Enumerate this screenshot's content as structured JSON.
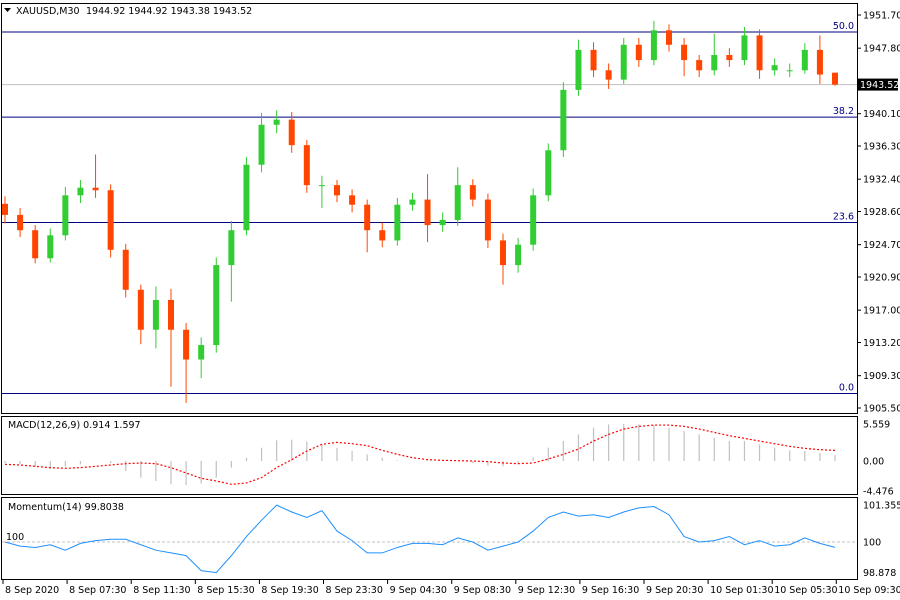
{
  "header": {
    "symbol": "XAUUSD,M30",
    "ohlc": "1944.92 1944.92 1943.38 1943.52",
    "menu_icon": "triangle-down-icon"
  },
  "colors": {
    "bull": "#32CD32",
    "bear": "#FF4500",
    "fib_line": "#000080",
    "price_line": "#C0C0C0",
    "macd_hist": "#C0C0C0",
    "macd_signal": "#FF0000",
    "momentum": "#1E90FF"
  },
  "chart_data": [
    {
      "type": "candlestick",
      "title": "XAUUSD,M30",
      "ylim": [
        1905.5,
        1951.7
      ],
      "y_ticks": [
        "1951.70",
        "1947.80",
        "1940.10",
        "1936.30",
        "1932.40",
        "1928.60",
        "1924.70",
        "1920.90",
        "1917.00",
        "1913.20",
        "1909.30",
        "1905.50"
      ],
      "current_price": "1943.52",
      "fib_levels": [
        {
          "label": "50.0",
          "price": 1949.7
        },
        {
          "label": "38.2",
          "price": 1939.7
        },
        {
          "label": "23.6",
          "price": 1927.3
        },
        {
          "label": "0.0",
          "price": 1907.2
        }
      ],
      "x_ticks": [
        "8 Sep 2020",
        "8 Sep 07:30",
        "8 Sep 11:30",
        "8 Sep 15:30",
        "8 Sep 19:30",
        "8 Sep 23:30",
        "9 Sep 04:30",
        "9 Sep 08:30",
        "9 Sep 12:30",
        "9 Sep 16:30",
        "9 Sep 20:30",
        "10 Sep 01:30",
        "10 Sep 05:30",
        "10 Sep 09:30"
      ],
      "ohlc": [
        [
          1929.5,
          1930.4,
          1927.2,
          1928.2
        ],
        [
          1928.2,
          1929.0,
          1925.6,
          1926.4
        ],
        [
          1926.4,
          1927.0,
          1922.5,
          1923.1
        ],
        [
          1923.1,
          1926.6,
          1922.6,
          1925.8
        ],
        [
          1925.8,
          1931.5,
          1925.2,
          1930.5
        ],
        [
          1930.5,
          1932.3,
          1929.6,
          1931.4
        ],
        [
          1931.4,
          1935.3,
          1930.2,
          1931.1
        ],
        [
          1931.1,
          1931.8,
          1923.2,
          1924.1
        ],
        [
          1924.1,
          1924.8,
          1918.5,
          1919.4
        ],
        [
          1919.4,
          1920.0,
          1913.0,
          1914.7
        ],
        [
          1914.7,
          1919.8,
          1912.5,
          1918.2
        ],
        [
          1918.2,
          1919.5,
          1908.0,
          1914.7
        ],
        [
          1914.7,
          1915.5,
          1906.1,
          1911.2
        ],
        [
          1911.2,
          1913.8,
          1909.0,
          1912.9
        ],
        [
          1912.9,
          1923.2,
          1912.0,
          1922.3
        ],
        [
          1922.3,
          1927.5,
          1918.0,
          1926.4
        ],
        [
          1926.4,
          1935.0,
          1925.8,
          1934.1
        ],
        [
          1934.1,
          1940.2,
          1933.2,
          1938.8
        ],
        [
          1938.8,
          1940.5,
          1937.8,
          1939.4
        ],
        [
          1939.4,
          1940.3,
          1935.5,
          1936.4
        ],
        [
          1936.4,
          1937.0,
          1930.8,
          1931.7
        ],
        [
          1931.7,
          1932.8,
          1929.0,
          1931.7
        ],
        [
          1931.7,
          1932.3,
          1929.7,
          1930.5
        ],
        [
          1930.5,
          1931.2,
          1928.5,
          1929.4
        ],
        [
          1929.4,
          1930.0,
          1923.8,
          1926.4
        ],
        [
          1926.4,
          1927.3,
          1924.4,
          1925.2
        ],
        [
          1925.2,
          1930.2,
          1924.6,
          1929.4
        ],
        [
          1929.4,
          1930.8,
          1928.7,
          1930.0
        ],
        [
          1930.0,
          1933.0,
          1925.0,
          1927.0
        ],
        [
          1927.0,
          1928.5,
          1926.2,
          1927.6
        ],
        [
          1927.6,
          1933.8,
          1926.9,
          1931.7
        ],
        [
          1931.7,
          1932.4,
          1929.2,
          1930.0
        ],
        [
          1930.0,
          1930.7,
          1924.3,
          1925.2
        ],
        [
          1925.2,
          1926.0,
          1920.0,
          1922.3
        ],
        [
          1922.3,
          1925.5,
          1921.4,
          1924.7
        ],
        [
          1924.7,
          1931.3,
          1924.0,
          1930.5
        ],
        [
          1930.5,
          1936.6,
          1929.8,
          1935.8
        ],
        [
          1935.8,
          1943.8,
          1935.0,
          1942.9
        ],
        [
          1942.9,
          1948.8,
          1942.2,
          1947.6
        ],
        [
          1947.6,
          1948.5,
          1944.4,
          1945.2
        ],
        [
          1945.2,
          1946.0,
          1943.0,
          1944.1
        ],
        [
          1944.1,
          1949.0,
          1943.6,
          1948.2
        ],
        [
          1948.2,
          1949.0,
          1945.6,
          1946.4
        ],
        [
          1946.4,
          1951.0,
          1945.8,
          1949.9
        ],
        [
          1949.9,
          1950.6,
          1947.4,
          1948.2
        ],
        [
          1948.2,
          1949.0,
          1944.5,
          1946.4
        ],
        [
          1946.4,
          1947.0,
          1944.4,
          1945.2
        ],
        [
          1945.2,
          1949.5,
          1944.6,
          1947.0
        ],
        [
          1947.0,
          1947.8,
          1945.6,
          1946.4
        ],
        [
          1946.4,
          1950.3,
          1945.8,
          1949.3
        ],
        [
          1949.3,
          1950.0,
          1944.2,
          1945.2
        ],
        [
          1945.2,
          1946.6,
          1944.6,
          1945.8
        ],
        [
          1945.2,
          1946.0,
          1944.4,
          1945.2
        ],
        [
          1945.2,
          1948.4,
          1944.8,
          1947.6
        ],
        [
          1947.6,
          1949.3,
          1943.6,
          1944.7
        ],
        [
          1944.92,
          1944.92,
          1943.38,
          1943.52
        ]
      ]
    },
    {
      "type": "bar+line",
      "title": "MACD(12,26,9) 0.914 1.597",
      "ylim": [
        -4.476,
        5.559
      ],
      "y_ticks": [
        "5.559",
        "0.00",
        "-4.476"
      ],
      "histogram": [
        -0.3,
        -0.5,
        -0.9,
        -1.2,
        -0.8,
        -0.5,
        0.0,
        -0.3,
        -1.5,
        -2.5,
        -3.0,
        -3.5,
        -3.6,
        -3.4,
        -2.5,
        -1.0,
        0.5,
        2.0,
        3.1,
        3.2,
        2.9,
        2.5,
        2.0,
        1.5,
        1.0,
        0.5,
        0.1,
        0.0,
        0.1,
        0.1,
        0.0,
        -0.3,
        -0.7,
        -0.8,
        -0.5,
        0.5,
        2.0,
        3.0,
        4.0,
        5.0,
        5.5,
        5.6,
        5.5,
        5.4,
        5.0,
        4.5,
        4.0,
        3.5,
        3.0,
        3.0,
        2.5,
        2.0,
        1.6,
        1.5,
        1.2,
        0.914
      ],
      "signal": [
        -0.5,
        -0.6,
        -0.8,
        -1.0,
        -1.1,
        -1.0,
        -0.8,
        -0.6,
        -0.4,
        -0.3,
        -0.4,
        -1.0,
        -1.8,
        -2.6,
        -3.0,
        -3.5,
        -3.3,
        -2.5,
        -1.0,
        0.2,
        1.5,
        2.5,
        2.8,
        2.6,
        2.3,
        1.6,
        1.0,
        0.5,
        0.2,
        0.1,
        0.05,
        0.0,
        -0.1,
        -0.3,
        -0.4,
        -0.3,
        0.3,
        1.0,
        1.8,
        3.0,
        4.0,
        4.8,
        5.2,
        5.4,
        5.4,
        5.2,
        4.8,
        4.3,
        3.8,
        3.4,
        3.0,
        2.6,
        2.2,
        1.9,
        1.7,
        1.597
      ]
    },
    {
      "type": "line",
      "title": "Momentum(14) 99.8038",
      "ylim": [
        98.878,
        101.3558
      ],
      "y_ticks": [
        "101.3558",
        "100",
        "98.878"
      ],
      "reference_level": "100",
      "values": [
        100.0,
        99.85,
        99.8,
        99.9,
        99.7,
        99.95,
        100.05,
        100.1,
        100.1,
        99.9,
        99.7,
        99.6,
        99.5,
        98.95,
        98.88,
        99.5,
        100.2,
        100.8,
        101.35,
        101.1,
        100.9,
        101.15,
        100.4,
        100.05,
        99.6,
        99.6,
        99.8,
        99.95,
        99.95,
        99.9,
        100.15,
        100.0,
        99.7,
        99.85,
        100.0,
        100.4,
        100.9,
        101.1,
        100.95,
        101.0,
        100.9,
        101.1,
        101.25,
        101.3,
        101.0,
        100.2,
        100.0,
        100.05,
        100.2,
        99.9,
        100.05,
        99.85,
        99.9,
        100.15,
        99.95,
        99.8038
      ]
    }
  ]
}
